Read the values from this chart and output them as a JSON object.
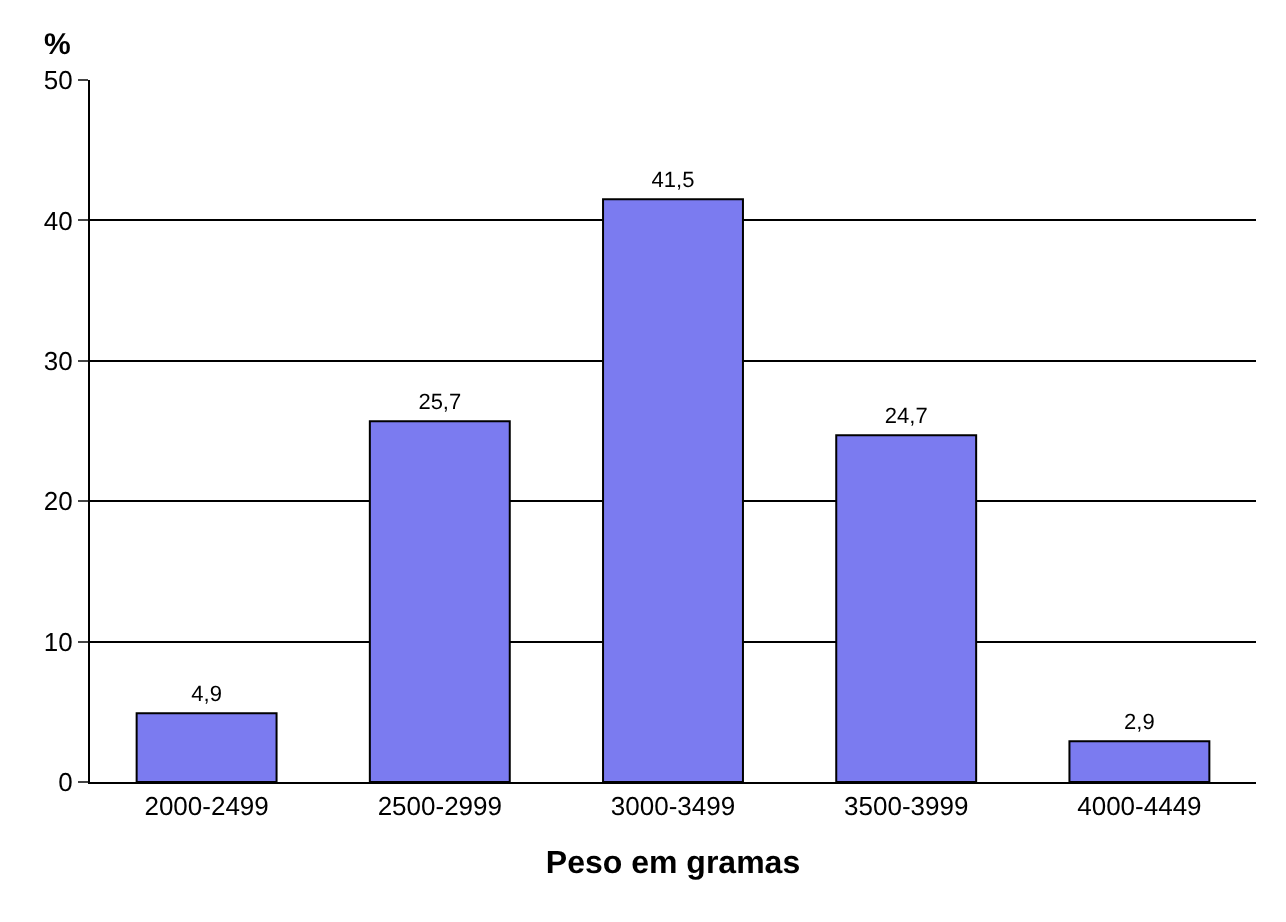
{
  "chart_data": {
    "type": "bar",
    "xlabel": "Peso em gramas",
    "ylabel": "%",
    "categories": [
      "2000-2499",
      "2500-2999",
      "3000-3499",
      "3500-3999",
      "4000-4449"
    ],
    "values": [
      4.9,
      25.7,
      41.5,
      24.7,
      2.9
    ],
    "value_labels": [
      "4,9",
      "25,7",
      "41,5",
      "24,7",
      "2,9"
    ],
    "color": "#7b7bf0",
    "ylim": [
      0,
      50
    ],
    "yticks": [
      0,
      10,
      20,
      30,
      40,
      50
    ],
    "grid": "y",
    "legend": false
  }
}
